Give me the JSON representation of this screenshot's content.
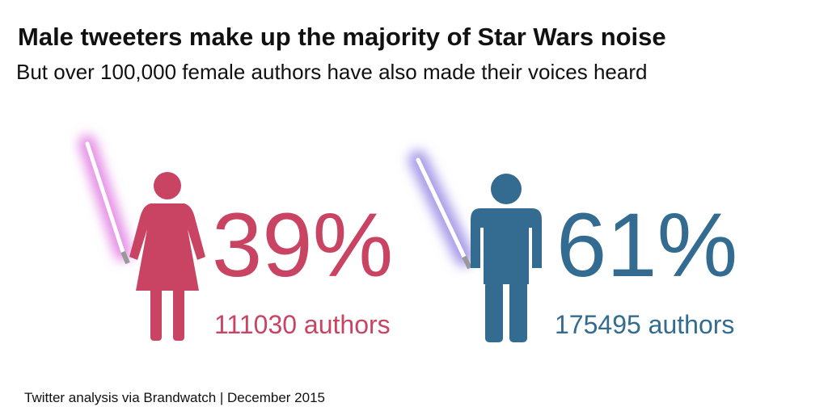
{
  "title": "Male tweeters make up the majority of Star Wars noise",
  "subtitle": "But over 100,000 female authors have also made their voices heard",
  "groups": [
    {
      "percent": "39%",
      "authors": "111030 authors",
      "color": "#c94463",
      "saber_color": "#e58ee6"
    },
    {
      "percent": "61%",
      "authors": "175495 authors",
      "color": "#336b91",
      "saber_color": "#a99be8"
    }
  ],
  "source": "Twitter analysis via Brandwatch | December 2015"
}
